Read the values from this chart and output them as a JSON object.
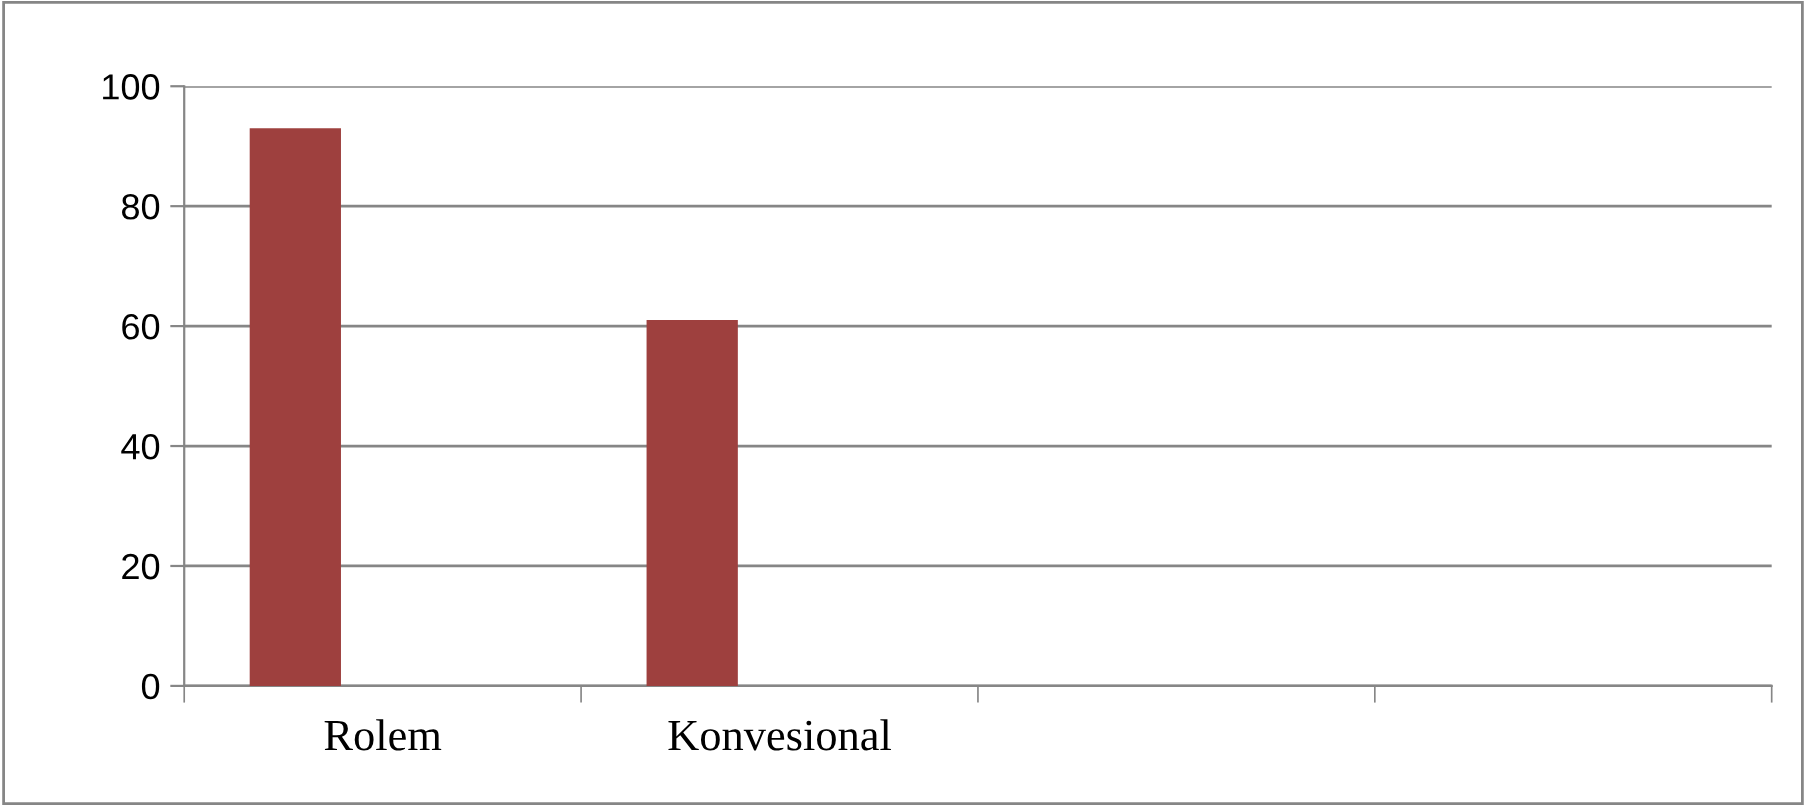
{
  "chart_data": {
    "type": "bar",
    "categories": [
      "Rolem",
      "Konvesional",
      null,
      null
    ],
    "values": [
      93,
      61,
      null,
      null
    ],
    "color": "#9e403e",
    "ylim": [
      0,
      100
    ],
    "yticks": [
      0,
      20,
      40,
      60,
      80,
      100
    ],
    "grid": "y",
    "legend": false
  }
}
